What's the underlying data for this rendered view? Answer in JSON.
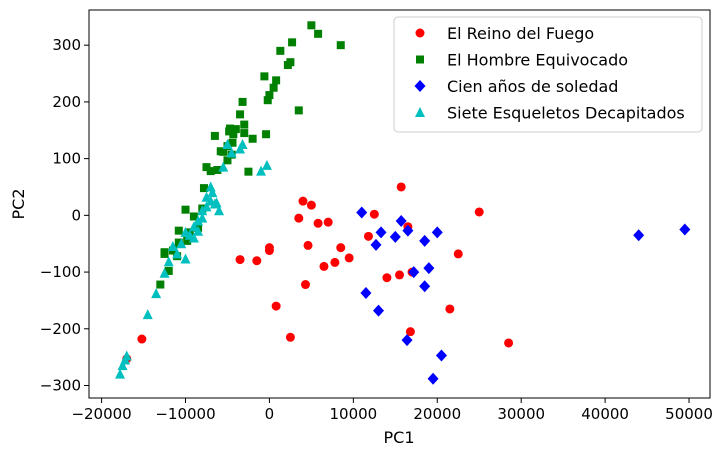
{
  "chart_data": {
    "type": "scatter",
    "xlabel": "PC1",
    "ylabel": "PC2",
    "xlim": [
      -21500,
      52500
    ],
    "ylim": [
      -322,
      362
    ],
    "xticks": [
      -20000,
      -10000,
      0,
      10000,
      20000,
      30000,
      40000,
      50000
    ],
    "yticks": [
      -300,
      -200,
      -100,
      0,
      100,
      200,
      300
    ],
    "grid": false,
    "legend_position": "top-right",
    "series": [
      {
        "name": "El Reino del Fuego",
        "marker": "circle",
        "color": "#ff0000",
        "points": [
          [
            -17000,
            -253
          ],
          [
            -15200,
            -218
          ],
          [
            -3500,
            -78
          ],
          [
            -1500,
            -80
          ],
          [
            0,
            -57
          ],
          [
            0,
            -62
          ],
          [
            800,
            -160
          ],
          [
            2500,
            -215
          ],
          [
            3500,
            -5
          ],
          [
            4000,
            25
          ],
          [
            4300,
            -122
          ],
          [
            4600,
            -53
          ],
          [
            5000,
            18
          ],
          [
            5800,
            -14
          ],
          [
            6500,
            -90
          ],
          [
            7000,
            -12
          ],
          [
            7800,
            -83
          ],
          [
            8500,
            -57
          ],
          [
            9500,
            -75
          ],
          [
            11800,
            -37
          ],
          [
            12500,
            2
          ],
          [
            14000,
            -110
          ],
          [
            15500,
            -105
          ],
          [
            15700,
            50
          ],
          [
            16500,
            -20
          ],
          [
            16800,
            -205
          ],
          [
            17000,
            -100
          ],
          [
            21500,
            -165
          ],
          [
            22500,
            -68
          ],
          [
            25000,
            6
          ],
          [
            28500,
            -225
          ]
        ]
      },
      {
        "name": "El Hombre Equivocado",
        "marker": "square",
        "color": "#008000",
        "points": [
          [
            -12500,
            -65
          ],
          [
            -12500,
            -68
          ],
          [
            -13000,
            -122
          ],
          [
            -12000,
            -98
          ],
          [
            -11500,
            -62
          ],
          [
            -11000,
            -72
          ],
          [
            -10800,
            -27
          ],
          [
            -10800,
            -48
          ],
          [
            -10000,
            10
          ],
          [
            -9800,
            -45
          ],
          [
            -9500,
            -30
          ],
          [
            -9000,
            -2
          ],
          [
            -8500,
            -22
          ],
          [
            -8000,
            12
          ],
          [
            -7800,
            48
          ],
          [
            -7500,
            85
          ],
          [
            -7000,
            78
          ],
          [
            -6500,
            140
          ],
          [
            -6200,
            80
          ],
          [
            -5800,
            113
          ],
          [
            -5500,
            112
          ],
          [
            -5000,
            97
          ],
          [
            -5000,
            122
          ],
          [
            -4800,
            148
          ],
          [
            -4700,
            153
          ],
          [
            -4500,
            107
          ],
          [
            -4400,
            128
          ],
          [
            -4300,
            143
          ],
          [
            -4000,
            152
          ],
          [
            -3500,
            178
          ],
          [
            -3200,
            200
          ],
          [
            -3000,
            160
          ],
          [
            -3000,
            145
          ],
          [
            -2500,
            77
          ],
          [
            -2000,
            135
          ],
          [
            -600,
            245
          ],
          [
            -400,
            143
          ],
          [
            -200,
            203
          ],
          [
            0,
            212
          ],
          [
            500,
            225
          ],
          [
            800,
            238
          ],
          [
            1300,
            290
          ],
          [
            2200,
            265
          ],
          [
            2500,
            270
          ],
          [
            2700,
            305
          ],
          [
            3500,
            185
          ],
          [
            5000,
            335
          ],
          [
            5800,
            320
          ],
          [
            8500,
            300
          ]
        ]
      },
      {
        "name": "Cien años de soledad",
        "marker": "diamond",
        "color": "#0000ff",
        "points": [
          [
            11000,
            5
          ],
          [
            11500,
            -137
          ],
          [
            12700,
            -52
          ],
          [
            13000,
            -168
          ],
          [
            13300,
            -30
          ],
          [
            15000,
            -38
          ],
          [
            15700,
            -10
          ],
          [
            16500,
            -27
          ],
          [
            16400,
            -220
          ],
          [
            17200,
            -100
          ],
          [
            18500,
            -45
          ],
          [
            18500,
            -125
          ],
          [
            19000,
            -93
          ],
          [
            19500,
            -288
          ],
          [
            20000,
            -30
          ],
          [
            20500,
            -247
          ],
          [
            44000,
            -35
          ],
          [
            49500,
            -25
          ]
        ]
      },
      {
        "name": "Siete Esqueletos Decapitados",
        "marker": "triangle",
        "color": "#00bfbf",
        "points": [
          [
            -17800,
            -280
          ],
          [
            -17500,
            -265
          ],
          [
            -17200,
            -255
          ],
          [
            -17000,
            -248
          ],
          [
            -14500,
            -175
          ],
          [
            -13500,
            -138
          ],
          [
            -12500,
            -102
          ],
          [
            -12000,
            -82
          ],
          [
            -11500,
            -55
          ],
          [
            -11000,
            -68
          ],
          [
            -10500,
            -50
          ],
          [
            -10000,
            -77
          ],
          [
            -10000,
            -30
          ],
          [
            -9500,
            -35
          ],
          [
            -9000,
            -40
          ],
          [
            -9000,
            -20
          ],
          [
            -8500,
            -28
          ],
          [
            -8500,
            -10
          ],
          [
            -8000,
            -5
          ],
          [
            -8000,
            8
          ],
          [
            -7500,
            15
          ],
          [
            -7500,
            32
          ],
          [
            -7000,
            25
          ],
          [
            -7000,
            50
          ],
          [
            -6800,
            40
          ],
          [
            -6500,
            20
          ],
          [
            -6300,
            22
          ],
          [
            -6000,
            8
          ],
          [
            -5500,
            85
          ],
          [
            -5000,
            125
          ],
          [
            -4500,
            110
          ],
          [
            -3500,
            117
          ],
          [
            -3200,
            125
          ],
          [
            -1000,
            78
          ],
          [
            -300,
            88
          ]
        ]
      }
    ]
  }
}
